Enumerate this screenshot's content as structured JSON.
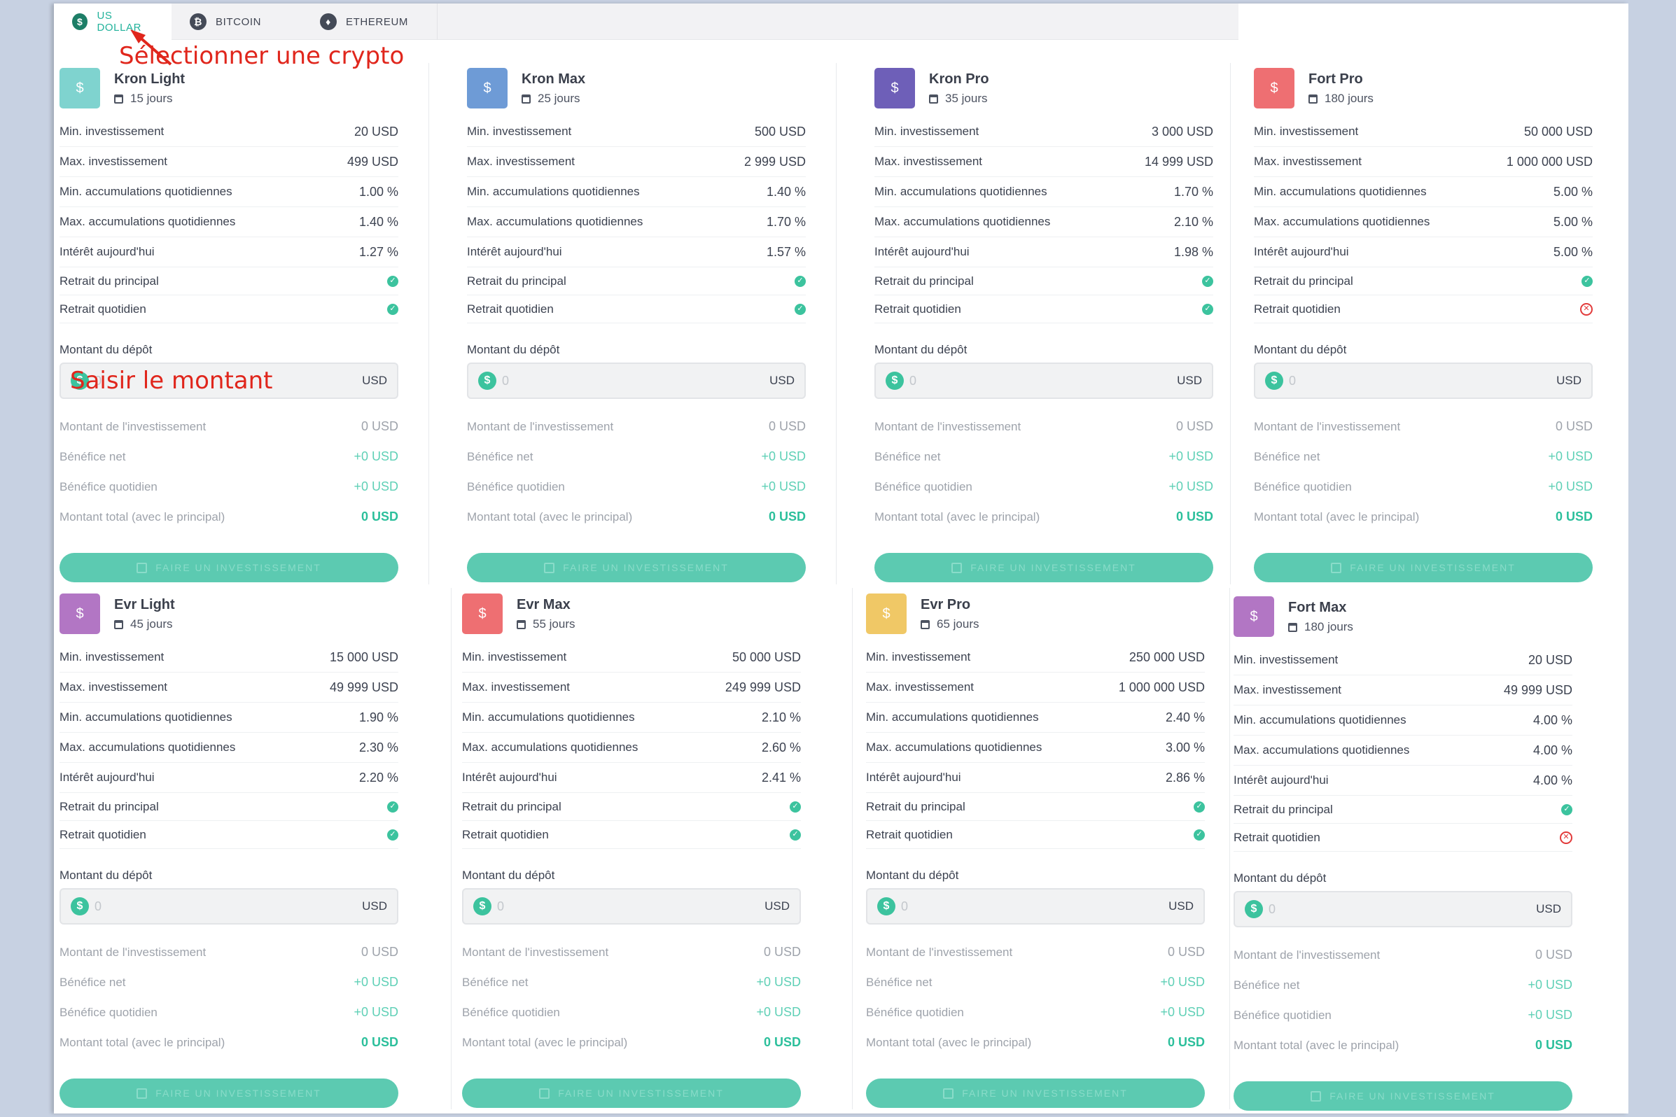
{
  "tabs": [
    {
      "label": "US DOLLAR",
      "symbol": "$",
      "active": true
    },
    {
      "label": "BITCOIN",
      "symbol": "₿",
      "active": false
    },
    {
      "label": "ETHEREUM",
      "symbol": "♦",
      "active": false
    }
  ],
  "annotations": {
    "select_crypto": "Sélectionner une crypto",
    "enter_amount": "Saisir le montant"
  },
  "labels": {
    "min_invest": "Min. investissement",
    "max_invest": "Max. investissement",
    "min_daily": "Min. accumulations quotidiennes",
    "max_daily": "Max. accumulations quotidiennes",
    "interest_today": "Intérêt aujourd'hui",
    "principal_withdrawal": "Retrait du principal",
    "daily_withdrawal": "Retrait quotidien",
    "deposit_amount": "Montant du dépôt",
    "deposit_placeholder": "0",
    "currency": "USD",
    "investment_amount": "Montant de l'investissement",
    "net_profit": "Bénéfice net",
    "daily_profit": "Bénéfice quotidien",
    "total_amount": "Montant total (avec le principal)",
    "invest_button": "FAIRE UN INVESTISSEMENT",
    "investment_value": "0 USD",
    "net_value": "+0 USD",
    "daily_value": "+0 USD",
    "total_value": "0 USD"
  },
  "plans": [
    {
      "name": "Kron Light",
      "days": "15 jours",
      "color": "#7fd3cf",
      "min": "20 USD",
      "max": "499 USD",
      "min_daily": "1.00 %",
      "max_daily": "1.40 %",
      "interest": "1.27 %",
      "principal": true,
      "daily": true
    },
    {
      "name": "Kron Max",
      "days": "25 jours",
      "color": "#6e9bd6",
      "min": "500 USD",
      "max": "2 999 USD",
      "min_daily": "1.40 %",
      "max_daily": "1.70 %",
      "interest": "1.57 %",
      "principal": true,
      "daily": true
    },
    {
      "name": "Kron Pro",
      "days": "35 jours",
      "color": "#6e5fb8",
      "min": "3 000 USD",
      "max": "14 999 USD",
      "min_daily": "1.70 %",
      "max_daily": "2.10 %",
      "interest": "1.98 %",
      "principal": true,
      "daily": true
    },
    {
      "name": "Fort Pro",
      "days": "180 jours",
      "color": "#ee6f72",
      "min": "50 000 USD",
      "max": "1 000 000 USD",
      "min_daily": "5.00 %",
      "max_daily": "5.00 %",
      "interest": "5.00 %",
      "principal": true,
      "daily": false
    },
    {
      "name": "Evr Light",
      "days": "45 jours",
      "color": "#b276c4",
      "min": "15 000 USD",
      "max": "49 999 USD",
      "min_daily": "1.90 %",
      "max_daily": "2.30 %",
      "interest": "2.20 %",
      "principal": true,
      "daily": true
    },
    {
      "name": "Evr Max",
      "days": "55 jours",
      "color": "#ee6f72",
      "min": "50 000 USD",
      "max": "249 999 USD",
      "min_daily": "2.10 %",
      "max_daily": "2.60 %",
      "interest": "2.41 %",
      "principal": true,
      "daily": true
    },
    {
      "name": "Evr Pro",
      "days": "65 jours",
      "color": "#f0c866",
      "min": "250 000 USD",
      "max": "1 000 000 USD",
      "min_daily": "2.40 %",
      "max_daily": "3.00 %",
      "interest": "2.86 %",
      "principal": true,
      "daily": true
    },
    {
      "name": "Fort Max",
      "days": "180 jours",
      "color": "#b276c4",
      "min": "20 USD",
      "max": "49 999 USD",
      "min_daily": "4.00 %",
      "max_daily": "4.00 %",
      "interest": "4.00 %",
      "principal": true,
      "daily": false
    }
  ]
}
